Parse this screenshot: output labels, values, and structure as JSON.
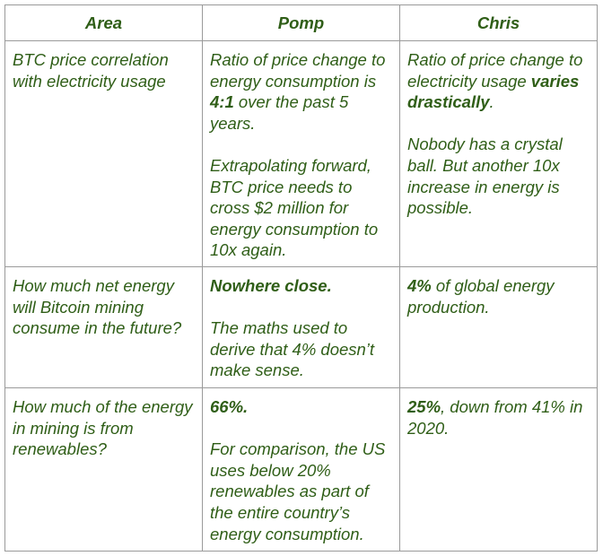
{
  "table": {
    "header": [
      "Area",
      "Pomp",
      "Chris"
    ],
    "rows": [
      [
        [
          [
            "BTC price correlation with electricity usage"
          ]
        ],
        [
          [
            "Ratio of price change to energy consumption is ",
            {
              "bold": "4:1"
            },
            " over the past 5 years."
          ],
          [
            "Extrapolating forward, BTC price needs to cross $2 million for energy consumption to 10x again."
          ]
        ],
        [
          [
            "Ratio of price change to electricity usage ",
            {
              "bold": "varies drastically"
            },
            "."
          ],
          [
            "Nobody has a crystal ball. But another 10x increase in energy is possible."
          ]
        ]
      ],
      [
        [
          [
            "How much net energy will Bitcoin mining consume in the future?"
          ]
        ],
        [
          [
            {
              "bold": "Nowhere close."
            }
          ],
          [
            "The maths used to derive that 4% doesn’t make sense."
          ]
        ],
        [
          [
            {
              "bold": "4%"
            },
            " of global energy production."
          ]
        ]
      ],
      [
        [
          [
            "How much of the energy in mining is from renewables?"
          ]
        ],
        [
          [
            {
              "bold": "66%."
            }
          ],
          [
            "For comparison, the US uses below 20% renewables as part of the entire country’s energy consumption."
          ]
        ],
        [
          [
            {
              "bold": "25%"
            },
            ", down from 41% in 2020."
          ]
        ]
      ]
    ]
  }
}
